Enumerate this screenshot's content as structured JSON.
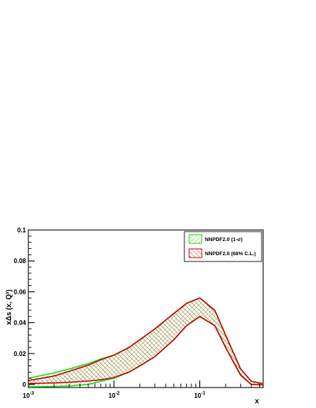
{
  "chart_data": {
    "type": "area",
    "xlabel": "x",
    "ylabel": "xΔs (x, Q²)",
    "xscale": "log",
    "xlim": [
      0.001,
      0.55
    ],
    "ylim": [
      -0.002,
      0.1
    ],
    "yticks": [
      0,
      0.02,
      0.04,
      0.06,
      0.08,
      0.1
    ],
    "ytick_labels": [
      "0",
      "0.02",
      "0.04",
      "0.06",
      "0.08",
      "0.1"
    ],
    "xticks": [
      0.001,
      0.01,
      0.1
    ],
    "xtick_labels": [
      {
        "base": "10",
        "exp": "-3"
      },
      {
        "base": "10",
        "exp": "-2"
      },
      {
        "base": "10",
        "exp": "-1"
      }
    ],
    "legend_position": "top-right",
    "series": [
      {
        "name": "NNPDF2.0 (1-σ)",
        "color": "#22dd22",
        "x": [
          0.001,
          0.002,
          0.003,
          0.005,
          0.007,
          0.01,
          0.015,
          0.02,
          0.03,
          0.05,
          0.07,
          0.1,
          0.15,
          0.2,
          0.3,
          0.4,
          0.55
        ],
        "upper": [
          0.004,
          0.0075,
          0.01,
          0.0135,
          0.0165,
          0.019,
          0.024,
          0.029,
          0.036,
          0.046,
          0.0525,
          0.056,
          0.048,
          0.032,
          0.01,
          0.002,
          0.0005
        ],
        "lower": [
          -0.0015,
          -0.0013,
          -0.001,
          0.0,
          0.002,
          0.004,
          0.008,
          0.012,
          0.018,
          0.029,
          0.038,
          0.044,
          0.038,
          0.024,
          0.006,
          0.0,
          -0.0003
        ]
      },
      {
        "name": "NNPDF2.0 (68% C.L.)",
        "color": "#cc1111",
        "x": [
          0.001,
          0.002,
          0.003,
          0.005,
          0.007,
          0.01,
          0.015,
          0.02,
          0.03,
          0.05,
          0.07,
          0.1,
          0.15,
          0.2,
          0.3,
          0.4,
          0.55
        ],
        "upper": [
          0.0025,
          0.0055,
          0.0085,
          0.0125,
          0.016,
          0.019,
          0.024,
          0.029,
          0.036,
          0.046,
          0.0525,
          0.056,
          0.048,
          0.032,
          0.01,
          0.002,
          0.0005
        ],
        "lower": [
          0.0005,
          0.001,
          0.0014,
          0.0022,
          0.003,
          0.0045,
          0.008,
          0.012,
          0.018,
          0.029,
          0.038,
          0.044,
          0.038,
          0.024,
          0.006,
          0.0,
          -0.0003
        ]
      }
    ]
  }
}
